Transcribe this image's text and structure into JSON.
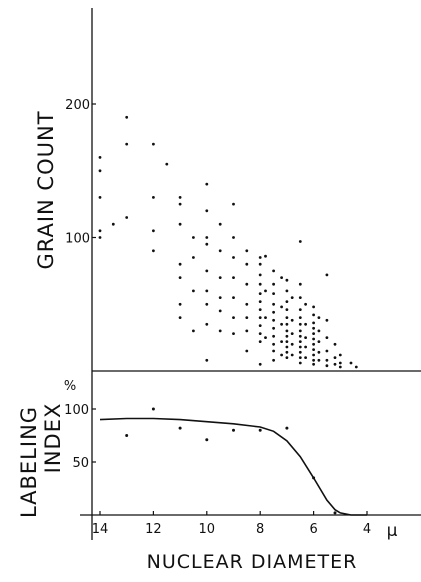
{
  "chart_data": [
    {
      "type": "scatter",
      "panel": "top",
      "title": "",
      "xlabel": "",
      "ylabel": "GRAIN COUNT",
      "xlim": [
        15,
        2.4
      ],
      "ylim": [
        0,
        280
      ],
      "yticks": [
        100,
        200
      ],
      "ytick_labels": [
        "100",
        "200"
      ],
      "points": [
        [
          14.0,
          160
        ],
        [
          14.0,
          150
        ],
        [
          14.0,
          130
        ],
        [
          14.0,
          105
        ],
        [
          14.0,
          100
        ],
        [
          13.5,
          110
        ],
        [
          13.0,
          190
        ],
        [
          13.0,
          170
        ],
        [
          13.0,
          115
        ],
        [
          12.0,
          170
        ],
        [
          12.0,
          130
        ],
        [
          12.0,
          105
        ],
        [
          12.0,
          90
        ],
        [
          11.5,
          155
        ],
        [
          11.0,
          130
        ],
        [
          11.0,
          125
        ],
        [
          11.0,
          110
        ],
        [
          11.0,
          80
        ],
        [
          11.0,
          70
        ],
        [
          11.0,
          50
        ],
        [
          11.0,
          40
        ],
        [
          10.5,
          100
        ],
        [
          10.5,
          85
        ],
        [
          10.5,
          60
        ],
        [
          10.5,
          30
        ],
        [
          10.0,
          140
        ],
        [
          10.0,
          120
        ],
        [
          10.0,
          100
        ],
        [
          10.0,
          95
        ],
        [
          10.0,
          75
        ],
        [
          10.0,
          60
        ],
        [
          10.0,
          50
        ],
        [
          10.0,
          35
        ],
        [
          10.0,
          8
        ],
        [
          9.5,
          110
        ],
        [
          9.5,
          90
        ],
        [
          9.5,
          70
        ],
        [
          9.5,
          55
        ],
        [
          9.5,
          45
        ],
        [
          9.5,
          30
        ],
        [
          9.0,
          125
        ],
        [
          9.0,
          100
        ],
        [
          9.0,
          85
        ],
        [
          9.0,
          70
        ],
        [
          9.0,
          55
        ],
        [
          9.0,
          40
        ],
        [
          9.0,
          28
        ],
        [
          8.5,
          90
        ],
        [
          8.5,
          80
        ],
        [
          8.5,
          65
        ],
        [
          8.5,
          50
        ],
        [
          8.5,
          40
        ],
        [
          8.5,
          30
        ],
        [
          8.5,
          15
        ],
        [
          8.0,
          85
        ],
        [
          8.0,
          80
        ],
        [
          8.0,
          72
        ],
        [
          8.0,
          65
        ],
        [
          8.0,
          58
        ],
        [
          8.0,
          52
        ],
        [
          8.0,
          46
        ],
        [
          8.0,
          40
        ],
        [
          8.0,
          34
        ],
        [
          8.0,
          28
        ],
        [
          8.0,
          22
        ],
        [
          8.0,
          5
        ],
        [
          7.8,
          86
        ],
        [
          7.8,
          60
        ],
        [
          7.8,
          40
        ],
        [
          7.8,
          25
        ],
        [
          7.5,
          75
        ],
        [
          7.5,
          65
        ],
        [
          7.5,
          58
        ],
        [
          7.5,
          50
        ],
        [
          7.5,
          44
        ],
        [
          7.5,
          38
        ],
        [
          7.5,
          32
        ],
        [
          7.5,
          26
        ],
        [
          7.5,
          20
        ],
        [
          7.5,
          15
        ],
        [
          7.5,
          8
        ],
        [
          7.2,
          70
        ],
        [
          7.2,
          48
        ],
        [
          7.2,
          35
        ],
        [
          7.2,
          22
        ],
        [
          7.2,
          12
        ],
        [
          7.0,
          68
        ],
        [
          7.0,
          60
        ],
        [
          7.0,
          52
        ],
        [
          7.0,
          46
        ],
        [
          7.0,
          40
        ],
        [
          7.0,
          35
        ],
        [
          7.0,
          30
        ],
        [
          7.0,
          26
        ],
        [
          7.0,
          22
        ],
        [
          7.0,
          18
        ],
        [
          7.0,
          14
        ],
        [
          7.0,
          10
        ],
        [
          6.8,
          55
        ],
        [
          6.8,
          38
        ],
        [
          6.8,
          28
        ],
        [
          6.8,
          20
        ],
        [
          6.8,
          12
        ],
        [
          6.5,
          97
        ],
        [
          6.5,
          65
        ],
        [
          6.5,
          55
        ],
        [
          6.5,
          46
        ],
        [
          6.5,
          40
        ],
        [
          6.5,
          35
        ],
        [
          6.5,
          30
        ],
        [
          6.5,
          26
        ],
        [
          6.5,
          22
        ],
        [
          6.5,
          18
        ],
        [
          6.5,
          14
        ],
        [
          6.5,
          10
        ],
        [
          6.5,
          6
        ],
        [
          6.3,
          50
        ],
        [
          6.3,
          35
        ],
        [
          6.3,
          25
        ],
        [
          6.3,
          18
        ],
        [
          6.3,
          10
        ],
        [
          6.0,
          48
        ],
        [
          6.0,
          42
        ],
        [
          6.0,
          36
        ],
        [
          6.0,
          32
        ],
        [
          6.0,
          28
        ],
        [
          6.0,
          24
        ],
        [
          6.0,
          20
        ],
        [
          6.0,
          16
        ],
        [
          6.0,
          12
        ],
        [
          6.0,
          8
        ],
        [
          6.0,
          5
        ],
        [
          5.8,
          40
        ],
        [
          5.8,
          30
        ],
        [
          5.8,
          22
        ],
        [
          5.8,
          14
        ],
        [
          5.8,
          8
        ],
        [
          5.5,
          72
        ],
        [
          5.5,
          38
        ],
        [
          5.5,
          25
        ],
        [
          5.5,
          15
        ],
        [
          5.5,
          8
        ],
        [
          5.5,
          4
        ],
        [
          5.2,
          20
        ],
        [
          5.2,
          10
        ],
        [
          5.2,
          5
        ],
        [
          5.0,
          12
        ],
        [
          5.0,
          6
        ],
        [
          5.0,
          3
        ],
        [
          4.6,
          6
        ],
        [
          4.4,
          3
        ]
      ]
    },
    {
      "type": "line",
      "panel": "bottom",
      "title": "",
      "xlabel": "NUCLEAR DIAMETER",
      "ylabel": "LABELING INDEX",
      "y_unit": "%",
      "x_unit": "μ",
      "xlim": [
        15,
        2.4
      ],
      "ylim": [
        0,
        125
      ],
      "xticks": [
        14,
        12,
        10,
        8,
        6,
        4
      ],
      "xtick_labels": [
        "14",
        "12",
        "10",
        "8",
        "6",
        "4"
      ],
      "yticks": [
        50,
        100
      ],
      "ytick_labels": [
        "50",
        "100"
      ],
      "curve": [
        [
          14.0,
          90
        ],
        [
          13.0,
          91
        ],
        [
          12.0,
          91
        ],
        [
          11.0,
          90
        ],
        [
          10.0,
          88
        ],
        [
          9.0,
          86
        ],
        [
          8.0,
          83
        ],
        [
          7.5,
          79
        ],
        [
          7.0,
          70
        ],
        [
          6.5,
          55
        ],
        [
          6.0,
          35
        ],
        [
          5.5,
          14
        ],
        [
          5.2,
          5
        ],
        [
          5.0,
          2
        ],
        [
          4.6,
          0
        ],
        [
          4.0,
          0
        ]
      ],
      "points": [
        [
          13.0,
          75
        ],
        [
          12.0,
          100
        ],
        [
          11.0,
          82
        ],
        [
          10.0,
          71
        ],
        [
          9.0,
          80
        ],
        [
          8.0,
          80
        ],
        [
          7.0,
          82
        ],
        [
          6.0,
          35
        ],
        [
          5.2,
          2
        ]
      ]
    }
  ]
}
